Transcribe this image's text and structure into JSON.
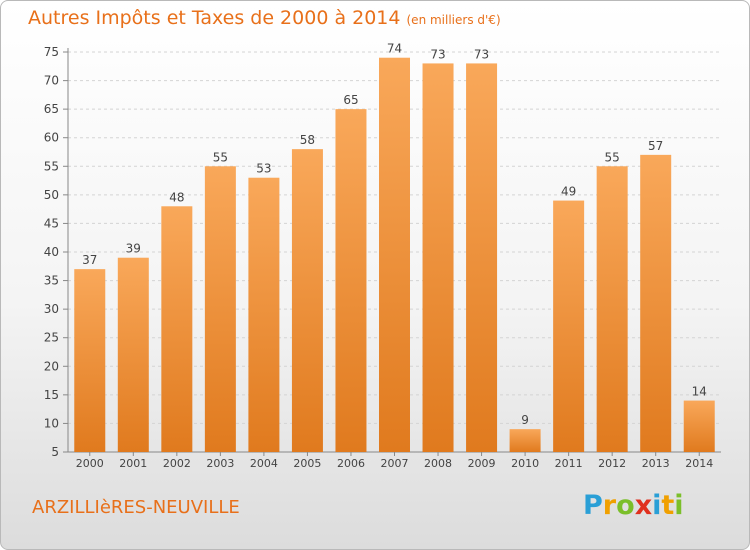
{
  "title": "Autres Impôts et Taxes de 2000 à 2014",
  "unit": "(en milliers d'€)",
  "commune": "ARZILLIèRES-NEUVILLE",
  "logo": {
    "letters": [
      "P",
      "r",
      "o",
      "x",
      "i",
      "t",
      "i"
    ],
    "colors": [
      "#2a9fd6",
      "#f0a000",
      "#7bbf2a",
      "#e0301e",
      "#2a9fd6",
      "#f0a000",
      "#7bbf2a"
    ]
  },
  "colors": {
    "bar_light": "#f9a85a",
    "bar_dark": "#e07a1e",
    "text": "#e8701a"
  },
  "chart_data": {
    "type": "bar",
    "title": "Autres Impôts et Taxes de 2000 à 2014",
    "subtitle": "(en milliers d'€)",
    "categories": [
      "2000",
      "2001",
      "2002",
      "2003",
      "2004",
      "2005",
      "2006",
      "2007",
      "2008",
      "2009",
      "2010",
      "2011",
      "2012",
      "2013",
      "2014"
    ],
    "values": [
      37,
      39,
      48,
      55,
      53,
      58,
      65,
      74,
      73,
      73,
      9,
      49,
      55,
      57,
      14
    ],
    "ylim": [
      5,
      75
    ],
    "yticks": [
      5,
      10,
      15,
      20,
      25,
      30,
      35,
      40,
      45,
      50,
      55,
      60,
      65,
      70,
      75
    ],
    "grid": true,
    "data_labels": true
  }
}
